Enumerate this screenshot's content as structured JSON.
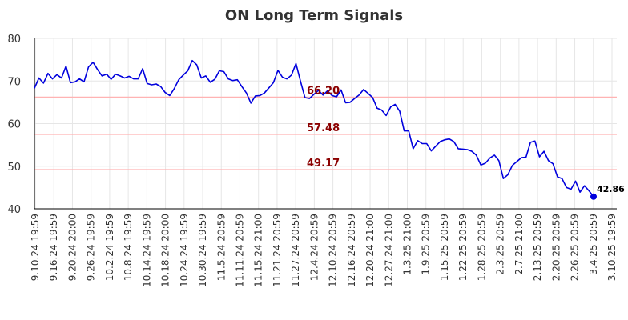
{
  "chart_data": {
    "type": "line",
    "title": "ON Long Term Signals",
    "xlabel": "",
    "ylabel": "",
    "ylim": [
      40,
      80
    ],
    "yticks": [
      40,
      50,
      60,
      70,
      80
    ],
    "grid": true,
    "x_tick_labels": [
      "9.10.24 19:59",
      "9.16.24 19:59",
      "9.20.24 20:00",
      "9.26.24 19:59",
      "10.2.24 19:59",
      "10.8.24 19:59",
      "10.14.24 19:59",
      "10.18.24 20:00",
      "10.24.24 19:59",
      "10.30.24 19:59",
      "11.5.24 20:59",
      "11.11.24 20:59",
      "11.15.24 21:00",
      "11.21.24 20:59",
      "11.27.24 20:59",
      "12.4.24 20:59",
      "12.10.24 20:59",
      "12.16.24 20:59",
      "12.20.24 21:00",
      "12.27.24 21:00",
      "1.3.25 21:00",
      "1.9.25 20:59",
      "1.15.25 20:59",
      "1.22.25 20:59",
      "1.28.25 20:59",
      "2.3.25 20:59",
      "2.7.25 21:00",
      "2.13.25 20:59",
      "2.20.25 20:59",
      "2.26.25 20:59",
      "3.4.25 20:59",
      "3.10.25 19:59"
    ],
    "series": [
      {
        "color": "#0000dd",
        "values": [
          68.3,
          70.7,
          69.5,
          71.8,
          70.5,
          71.5,
          70.7,
          73.5,
          69.6,
          69.8,
          70.5,
          69.8,
          73.3,
          74.4,
          72.7,
          71.2,
          71.6,
          70.4,
          71.6,
          71.2,
          70.7,
          71.1,
          70.5,
          70.5,
          72.9,
          69.4,
          69.1,
          69.3,
          68.7,
          67.3,
          66.6,
          68.2,
          70.3,
          71.4,
          72.4,
          74.8,
          73.8,
          70.7,
          71.2,
          69.7,
          70.4,
          72.4,
          72.2,
          70.5,
          70.1,
          70.3,
          68.7,
          67.2,
          64.8,
          66.5,
          66.6,
          67.2,
          68.4,
          69.6,
          72.5,
          70.9,
          70.5,
          71.4,
          74.1,
          70.0,
          66.1,
          65.9,
          66.9,
          67.8,
          66.7,
          67.7,
          66.6,
          66.3,
          67.9,
          64.9,
          65.0,
          65.9,
          66.7,
          68.0,
          67.1,
          66.1,
          63.6,
          63.2,
          61.9,
          63.9,
          64.5,
          62.9,
          58.3,
          58.3,
          54.1,
          56.0,
          55.3,
          55.3,
          53.6,
          54.7,
          55.8,
          56.2,
          56.4,
          55.8,
          54.1,
          54.0,
          53.9,
          53.5,
          52.6,
          50.3,
          50.7,
          51.9,
          52.6,
          51.3,
          47.1,
          48.0,
          50.2,
          51.1,
          52.0,
          52.1,
          55.6,
          55.9,
          52.2,
          53.5,
          51.3,
          50.6,
          47.5,
          47.1,
          45.0,
          44.6,
          46.5,
          43.9,
          45.4,
          44.2,
          42.86
        ]
      }
    ],
    "hlines": [
      {
        "value": 66.2,
        "label": "66.20",
        "color": "#ffb3b3"
      },
      {
        "value": 57.48,
        "label": "57.48",
        "color": "#ffb3b3"
      },
      {
        "value": 49.17,
        "label": "49.17",
        "color": "#ffb3b3"
      }
    ],
    "last_point": {
      "value": 42.86,
      "label": "42.86"
    }
  }
}
